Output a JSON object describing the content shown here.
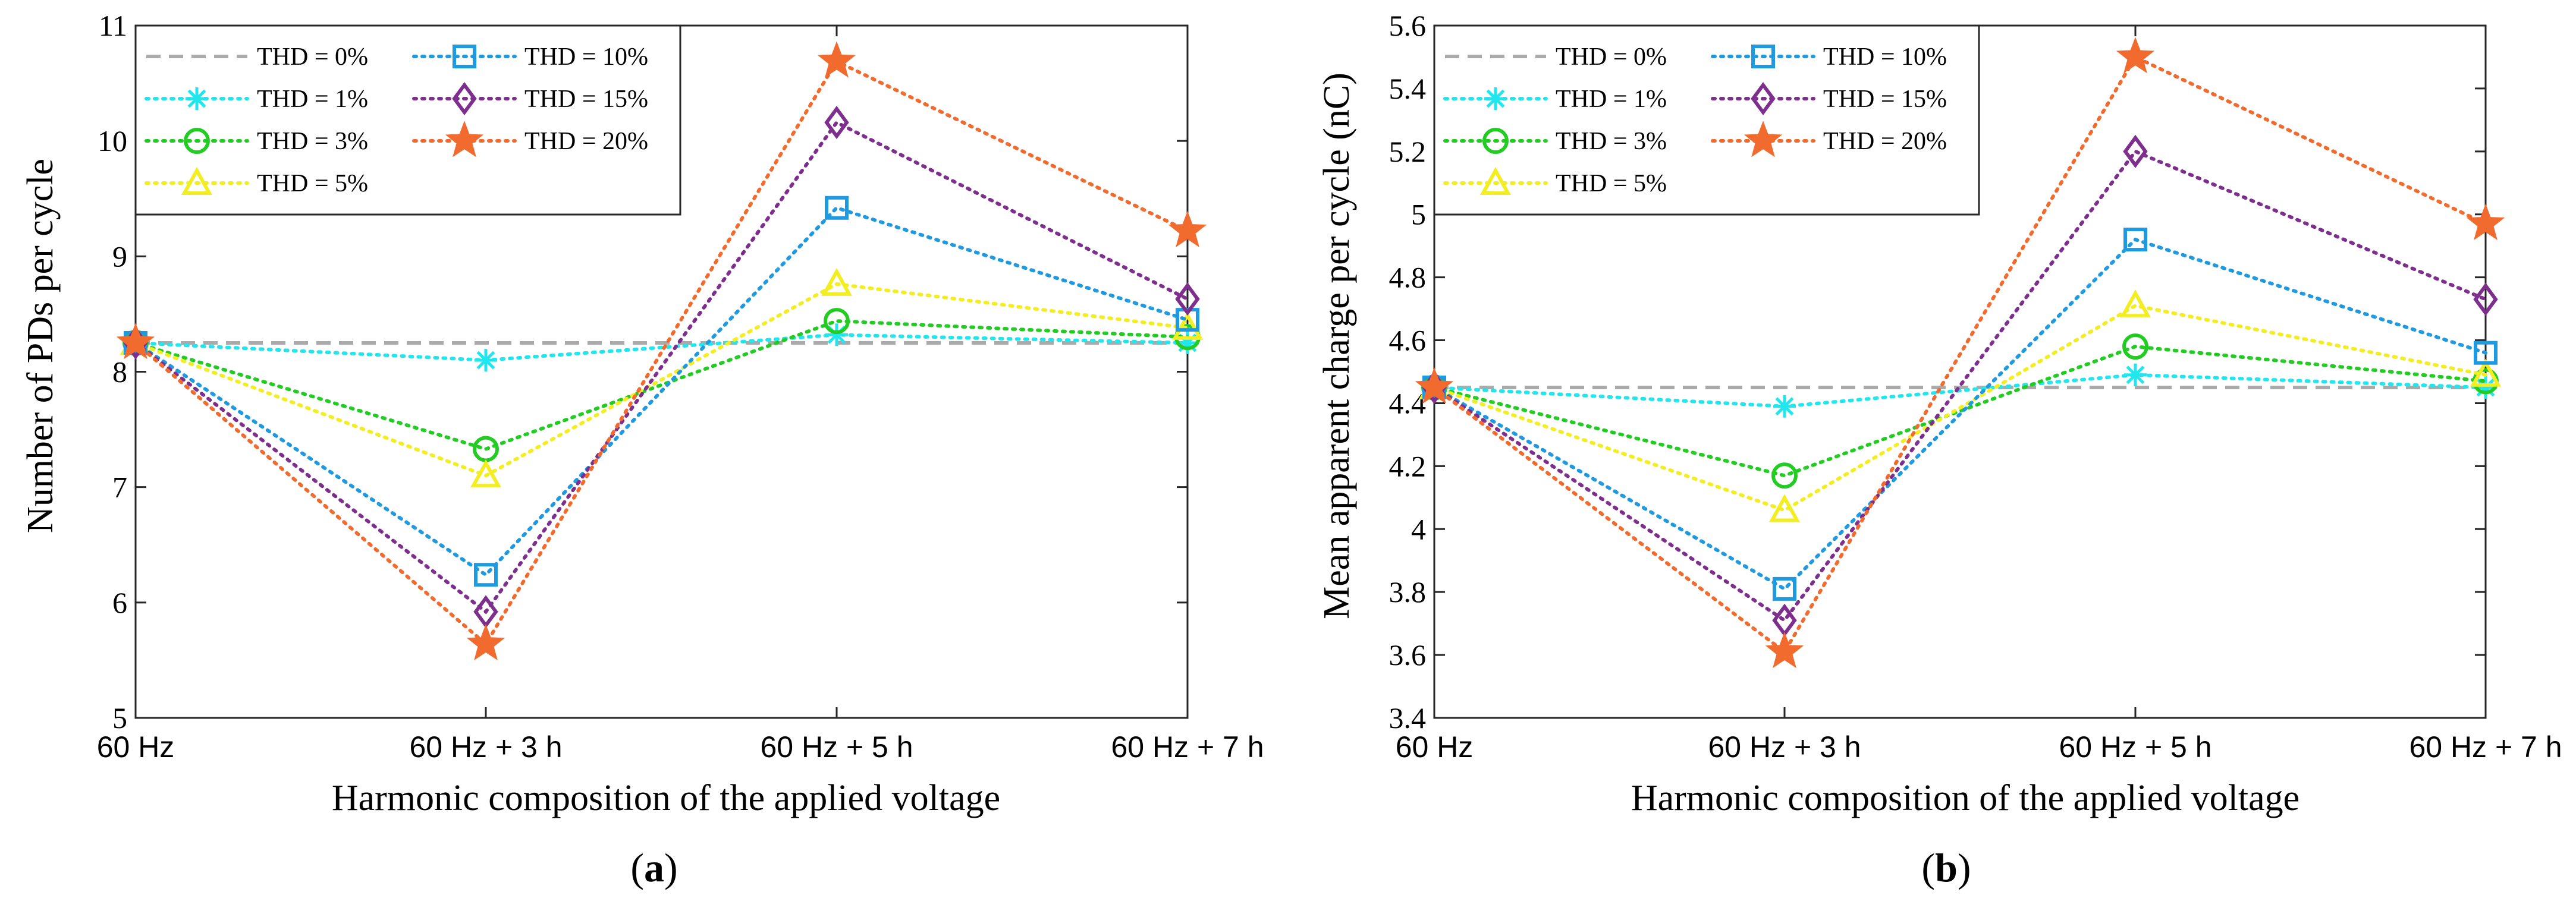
{
  "chart_data": [
    {
      "id": "a",
      "type": "line",
      "caption_letter": "a",
      "xlabel": "Harmonic composition of the applied voltage",
      "ylabel": "Number of PDs per cycle",
      "categories": [
        "60 Hz",
        "60 Hz + 3 h",
        "60 Hz + 5 h",
        "60 Hz + 7 h"
      ],
      "ylim": [
        5,
        11
      ],
      "yticks": [
        5,
        6,
        7,
        8,
        9,
        10,
        11
      ],
      "ytick_labels": [
        "5",
        "6",
        "7",
        "8",
        "9",
        "10",
        "11"
      ],
      "grid": false,
      "legend_position": "top-left",
      "series": [
        {
          "name": "THD = 0%",
          "color": "#aaaaaa",
          "marker": "none",
          "style": "dashed",
          "values": [
            8.25,
            8.25,
            8.25,
            8.25
          ]
        },
        {
          "name": "THD = 1%",
          "color": "#22e6ee",
          "marker": "asterisk",
          "style": "dotted",
          "values": [
            8.25,
            8.1,
            8.32,
            8.25
          ]
        },
        {
          "name": "THD = 3%",
          "color": "#22cc22",
          "marker": "circle",
          "style": "dotted",
          "values": [
            8.25,
            7.33,
            8.44,
            8.3
          ]
        },
        {
          "name": "THD = 5%",
          "color": "#f2ee22",
          "marker": "triangle",
          "style": "dotted",
          "values": [
            8.25,
            7.1,
            8.76,
            8.38
          ]
        },
        {
          "name": "THD = 10%",
          "color": "#1f9ae0",
          "marker": "square",
          "style": "dotted",
          "values": [
            8.25,
            6.24,
            9.42,
            8.45
          ]
        },
        {
          "name": "THD = 15%",
          "color": "#7e2f8e",
          "marker": "diamond",
          "style": "dotted",
          "values": [
            8.25,
            5.92,
            10.16,
            8.63
          ]
        },
        {
          "name": "THD = 20%",
          "color": "#f26b2e",
          "marker": "star",
          "style": "dotted",
          "values": [
            8.25,
            5.64,
            10.69,
            9.22
          ]
        }
      ]
    },
    {
      "id": "b",
      "type": "line",
      "caption_letter": "b",
      "xlabel": "Harmonic composition of the applied voltage",
      "ylabel": "Mean apparent charge per cycle (nC)",
      "categories": [
        "60 Hz",
        "60 Hz + 3 h",
        "60 Hz + 5 h",
        "60 Hz + 7 h"
      ],
      "ylim": [
        3.4,
        5.6
      ],
      "yticks": [
        3.4,
        3.6,
        3.8,
        4.0,
        4.2,
        4.4,
        4.6,
        4.8,
        5.0,
        5.2,
        5.4,
        5.6
      ],
      "ytick_labels": [
        "3.4",
        "3.6",
        "3.8",
        "4",
        "4.2",
        "4.4",
        "4.6",
        "4.8",
        "5",
        "5.2",
        "5.4",
        "5.6"
      ],
      "grid": false,
      "legend_position": "top-left",
      "series": [
        {
          "name": "THD = 0%",
          "color": "#aaaaaa",
          "marker": "none",
          "style": "dashed",
          "values": [
            4.45,
            4.45,
            4.45,
            4.45
          ]
        },
        {
          "name": "THD = 1%",
          "color": "#22e6ee",
          "marker": "asterisk",
          "style": "dotted",
          "values": [
            4.45,
            4.39,
            4.49,
            4.45
          ]
        },
        {
          "name": "THD = 3%",
          "color": "#22cc22",
          "marker": "circle",
          "style": "dotted",
          "values": [
            4.45,
            4.17,
            4.58,
            4.47
          ]
        },
        {
          "name": "THD = 5%",
          "color": "#f2ee22",
          "marker": "triangle",
          "style": "dotted",
          "values": [
            4.45,
            4.06,
            4.71,
            4.49
          ]
        },
        {
          "name": "THD = 10%",
          "color": "#1f9ae0",
          "marker": "square",
          "style": "dotted",
          "values": [
            4.45,
            3.81,
            4.92,
            4.56
          ]
        },
        {
          "name": "THD = 15%",
          "color": "#7e2f8e",
          "marker": "diamond",
          "style": "dotted",
          "values": [
            4.45,
            3.71,
            5.2,
            4.73
          ]
        },
        {
          "name": "THD = 20%",
          "color": "#f26b2e",
          "marker": "star",
          "style": "dotted",
          "values": [
            4.45,
            3.61,
            5.5,
            4.97
          ]
        }
      ]
    }
  ]
}
